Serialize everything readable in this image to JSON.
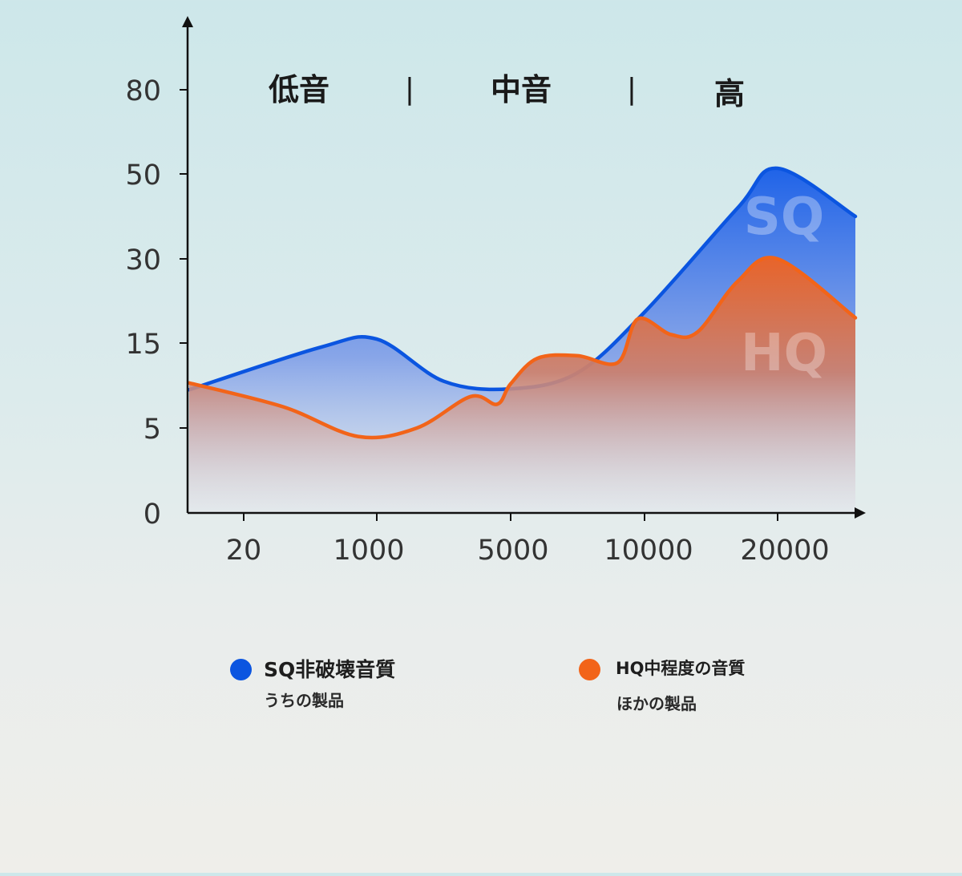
{
  "chart_data": {
    "type": "area",
    "x_categories": [
      "20",
      "1000",
      "5000",
      "10000",
      "20000"
    ],
    "y_ticks": [
      "0",
      "5",
      "15",
      "30",
      "50",
      "80"
    ],
    "band_labels": [
      "低音",
      "中音",
      "高"
    ],
    "band_separators": [
      "|",
      "|"
    ],
    "series": [
      {
        "name": "SQ",
        "color": "#0b55e0",
        "x": [
          0,
          0.7,
          1,
          1.5,
          2,
          2.5,
          3,
          3.7,
          4,
          4.5
        ],
        "values": [
          9.5,
          14.5,
          15.7,
          10.5,
          9.6,
          11.5,
          20.5,
          42,
          52,
          40
        ]
      },
      {
        "name": "HQ",
        "color": "#f26419",
        "x": [
          0,
          0.5,
          0.9,
          1.3,
          1.7,
          1.9,
          2.0,
          2.2,
          2.5,
          2.8,
          2.95,
          3.2,
          3.4,
          3.7,
          4,
          4.5
        ],
        "values": [
          10.3,
          7.5,
          4.5,
          5,
          8.7,
          7.8,
          10.2,
          13.2,
          13.5,
          12.7,
          19.3,
          16.5,
          17,
          26,
          30,
          19.5
        ]
      }
    ],
    "grid": false,
    "legend_position": "bottom"
  },
  "legend": {
    "sq": {
      "title": "SQ非破壊音質",
      "subtitle": "うちの製品",
      "color": "#0b55e0"
    },
    "hq": {
      "title": "HQ中程度の音質",
      "subtitle": "ほかの製品",
      "color": "#f26419"
    }
  }
}
